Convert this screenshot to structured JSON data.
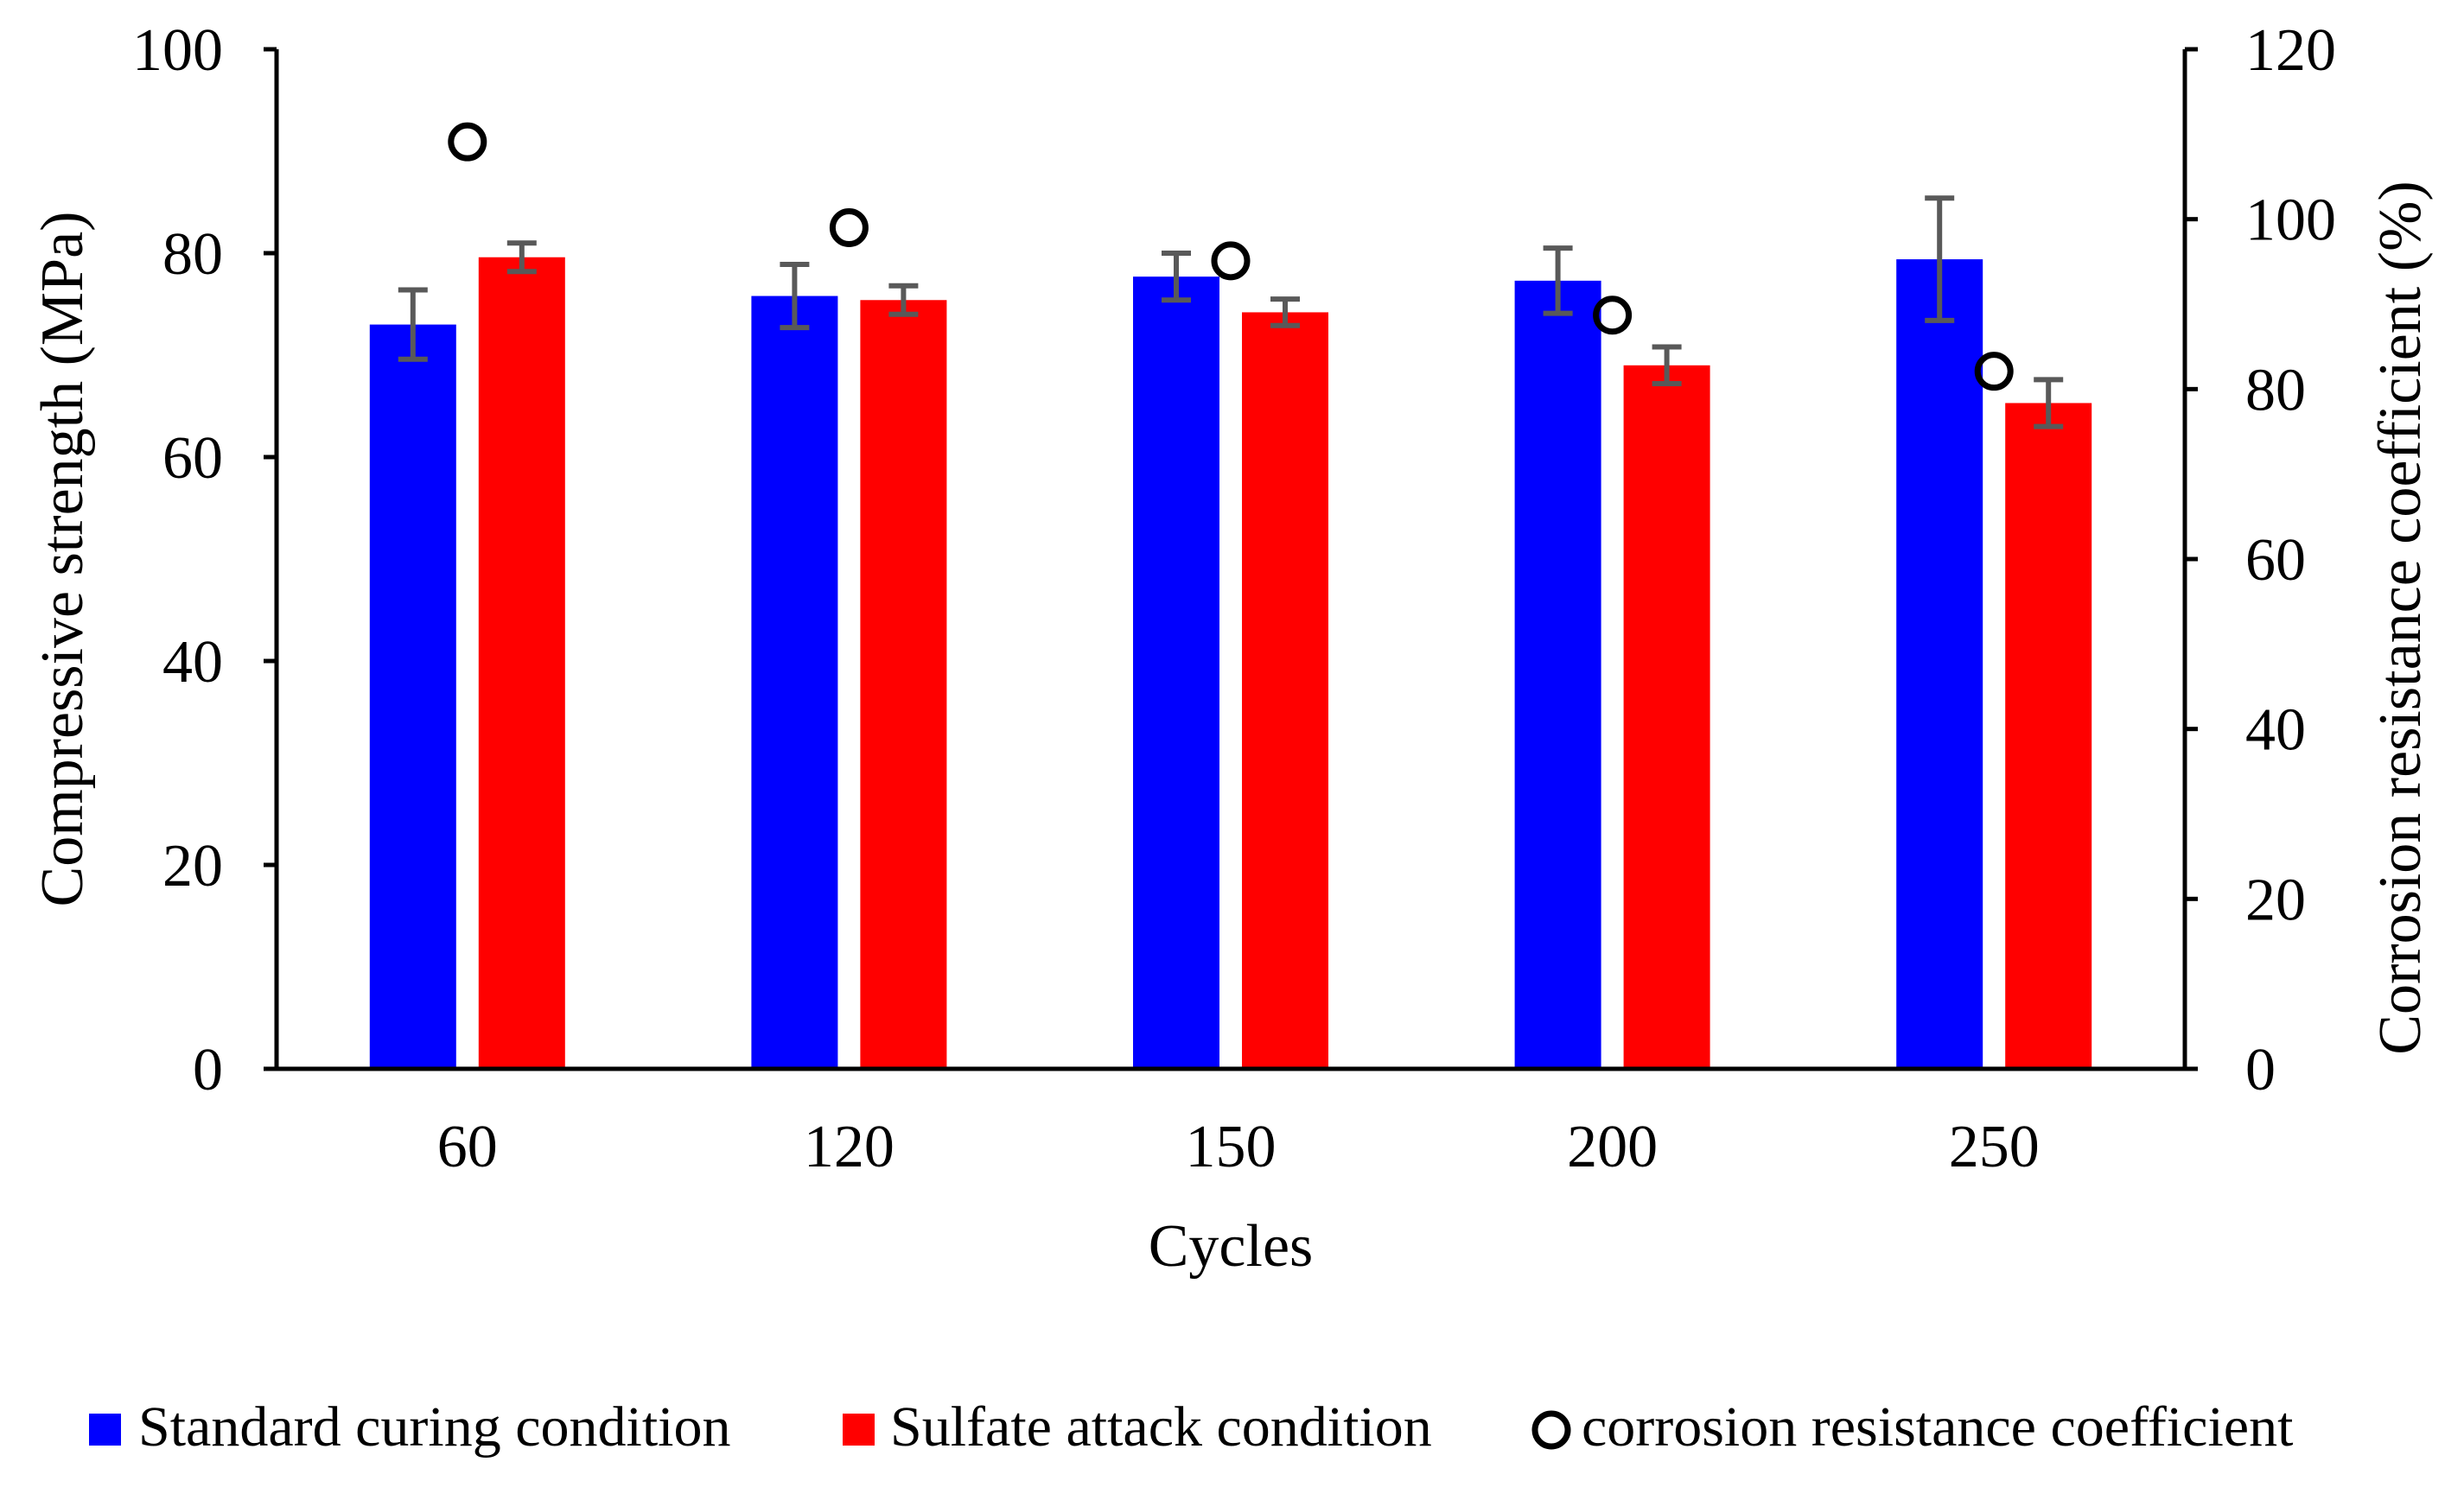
{
  "chart_data": {
    "type": "bar",
    "categories": [
      "60",
      "120",
      "150",
      "200",
      "250"
    ],
    "xlabel": "Cycles",
    "ylabel": "Compressive strength (MPa)",
    "y2label": "Corrosion resistance coefficient (%)",
    "ylim": [
      0,
      100
    ],
    "y2lim": [
      0,
      120
    ],
    "yticks": [
      "0",
      "20",
      "40",
      "60",
      "80",
      "100"
    ],
    "y2ticks": [
      "0",
      "20",
      "40",
      "60",
      "80",
      "100",
      "120"
    ],
    "grid": false,
    "legend_position": "bottom",
    "series": [
      {
        "name": "Standard curing condition",
        "color": "#0000FF",
        "values": [
          73.0,
          75.8,
          77.7,
          77.3,
          79.4
        ],
        "errors": [
          3.4,
          3.1,
          2.3,
          3.2,
          6.0
        ]
      },
      {
        "name": "Sulfate attack condition",
        "color": "#FF0000",
        "values": [
          79.6,
          75.4,
          74.2,
          69.0,
          65.3
        ],
        "errors": [
          1.4,
          1.4,
          1.3,
          1.8,
          2.3
        ]
      }
    ],
    "secondary_series": {
      "name": "corrosion resistance coefficient",
      "axis": "right",
      "marker": "open-circle",
      "values": [
        109.1,
        99.0,
        95.1,
        88.7,
        82.1
      ]
    },
    "errorbar_color": "#595959"
  }
}
